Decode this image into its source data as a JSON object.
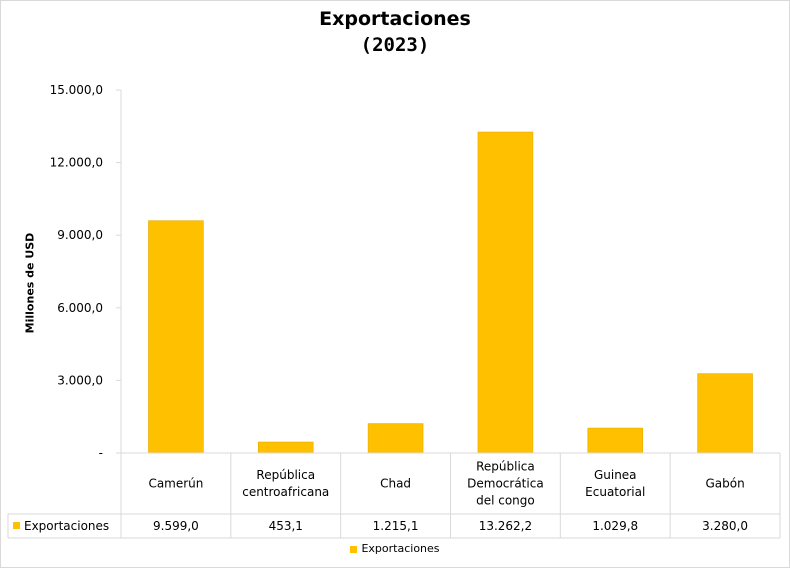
{
  "chart_data": {
    "type": "bar",
    "title_line1": "Exportaciones",
    "title_line2": "(2023)",
    "ylabel": "Millones de USD",
    "xlabel": "",
    "ylim": [
      0,
      15000
    ],
    "yticks": [
      0,
      3000,
      6000,
      9000,
      12000,
      15000
    ],
    "ytick_labels": [
      "-",
      "3.000,0",
      "6.000,0",
      "9.000,0",
      "12.000,0",
      "15.000,0"
    ],
    "categories": [
      [
        "Camerún"
      ],
      [
        "República",
        "centroafricana"
      ],
      [
        "Chad"
      ],
      [
        "República",
        "Democrática",
        "del congo"
      ],
      [
        "Guinea",
        "Ecuatorial"
      ],
      [
        "Gabón"
      ]
    ],
    "series": [
      {
        "name": "Exportaciones",
        "color": "#ffc000",
        "values": [
          9599.0,
          453.1,
          1215.1,
          13262.2,
          1029.8,
          3280.0
        ],
        "value_labels": [
          "9.599,0",
          "453,1",
          "1.215,1",
          "13.262,2",
          "1.029,8",
          "3.280,0"
        ]
      }
    ],
    "data_table": true,
    "grid": false,
    "legend": "bottom-center"
  }
}
